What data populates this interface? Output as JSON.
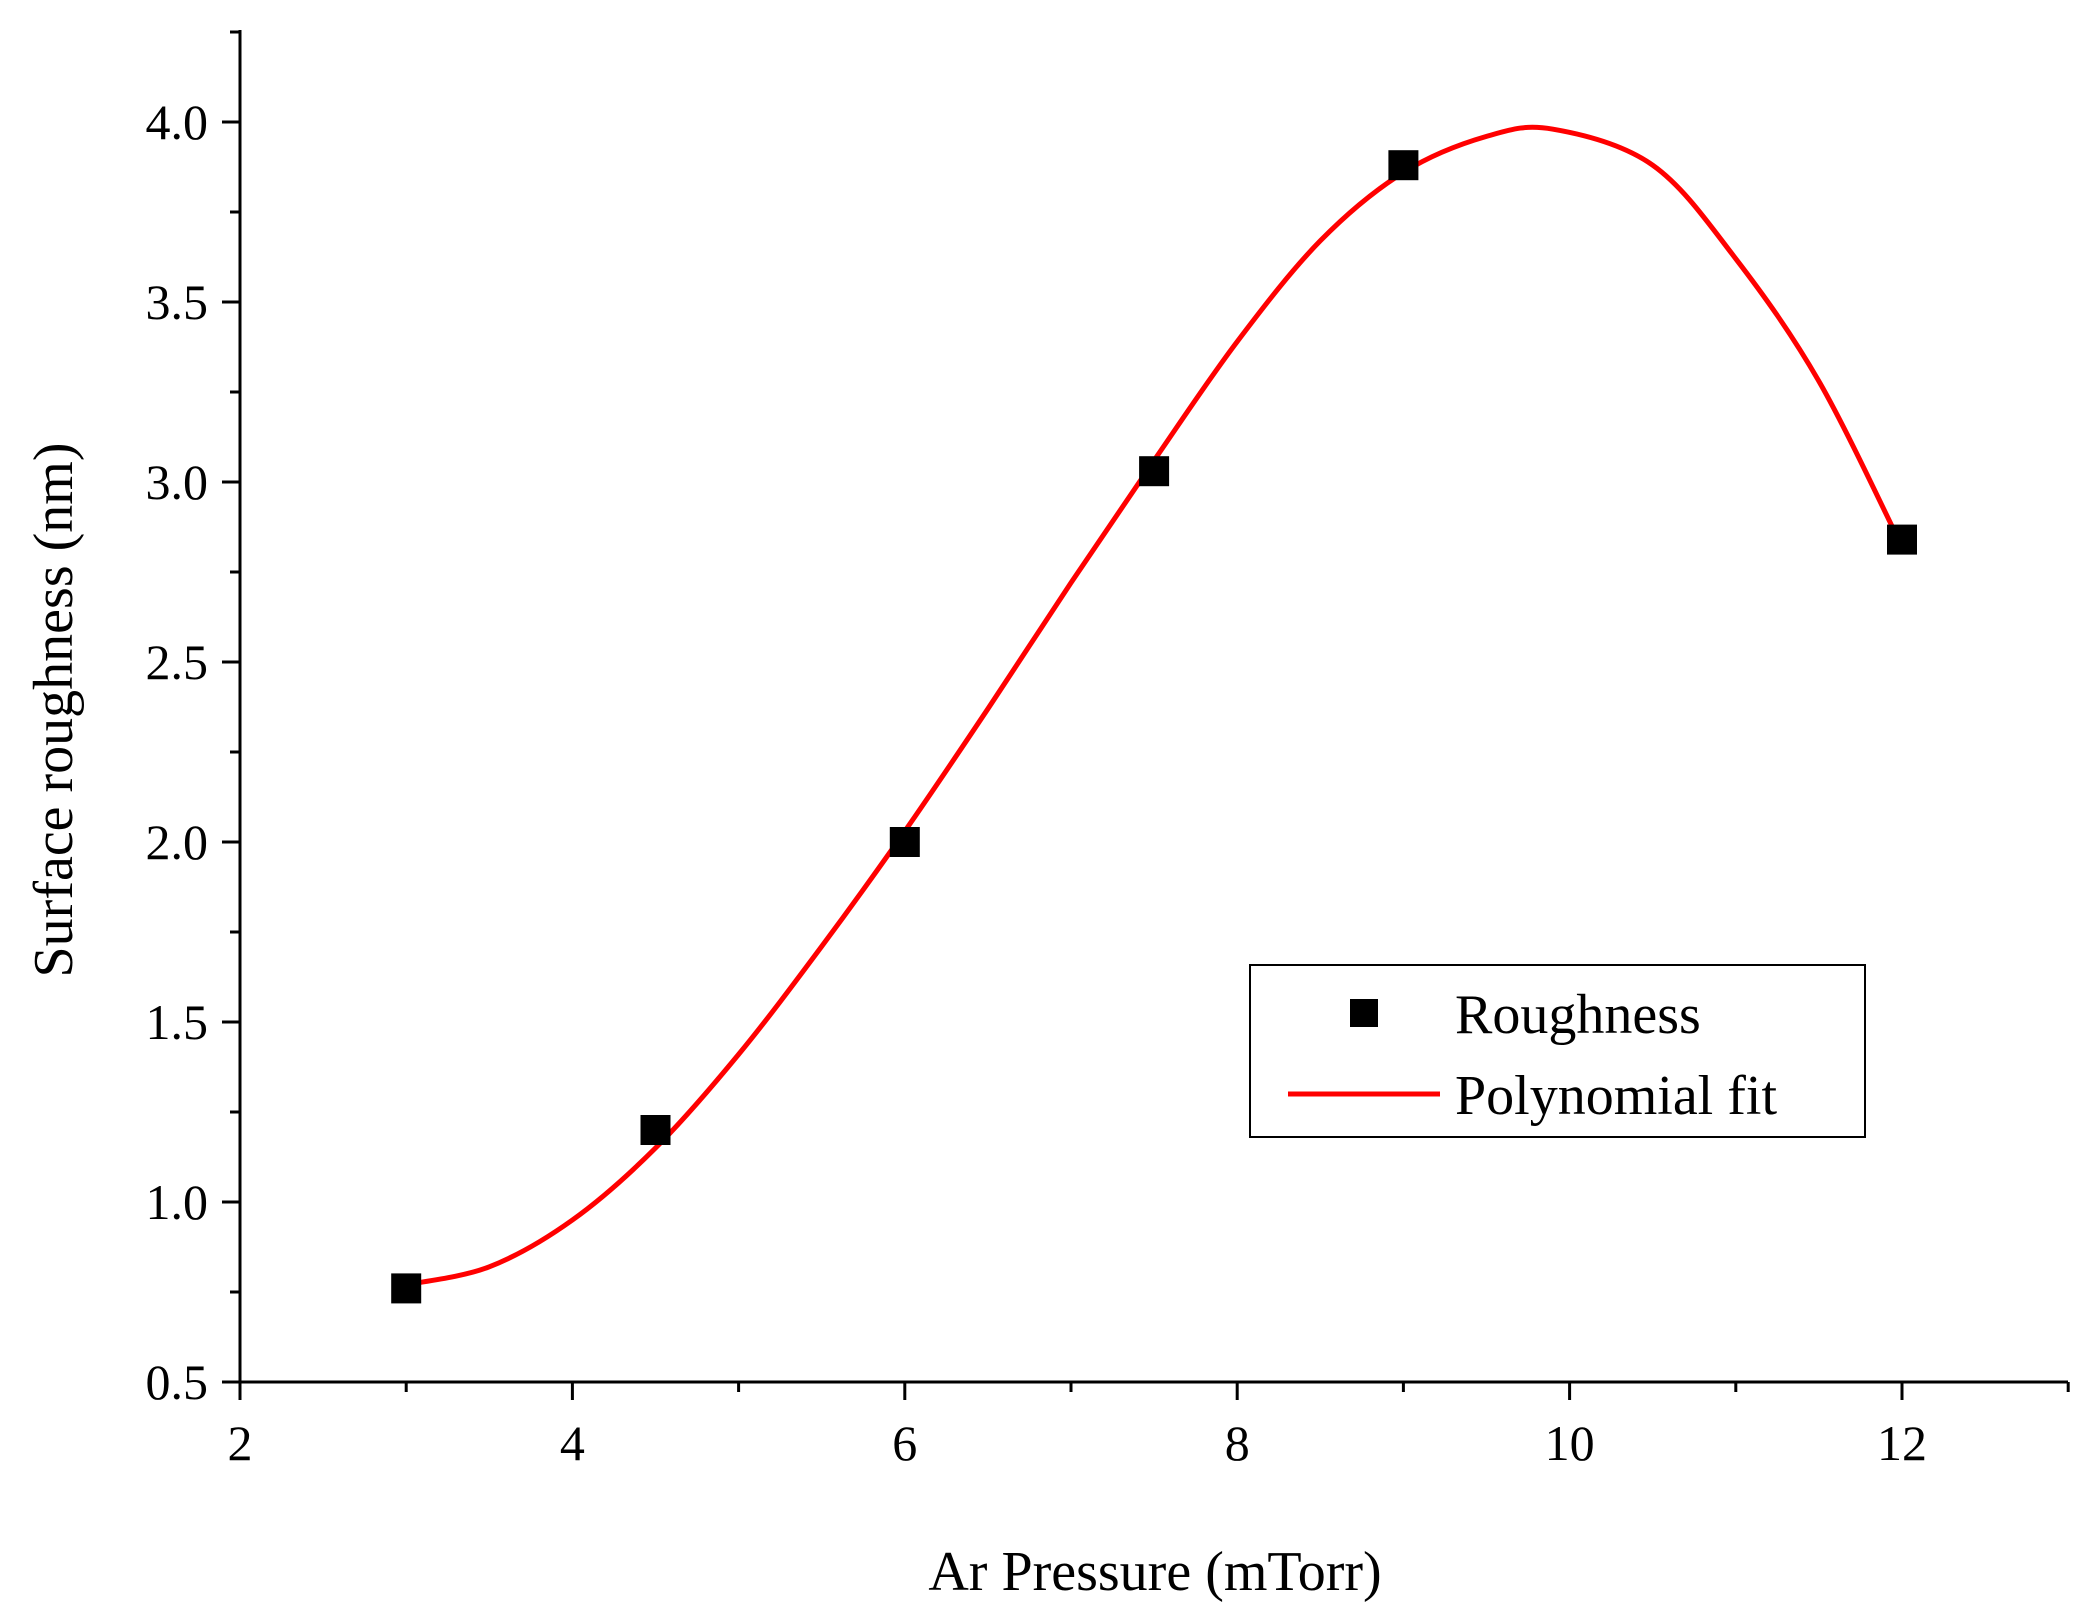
{
  "chart_data": {
    "type": "scatter",
    "title": "",
    "xlabel": "Ar Pressure (mTorr)",
    "ylabel": "Surface roughness (nm)",
    "xlim": [
      2,
      13
    ],
    "ylim": [
      0.5,
      4.25
    ],
    "x_ticks": [
      "2",
      "4",
      "6",
      "8",
      "10",
      "12"
    ],
    "y_ticks": [
      "0.5",
      "1.0",
      "1.5",
      "2.0",
      "2.5",
      "3.0",
      "3.5",
      "4.0"
    ],
    "grid": false,
    "legend_position": "right-center",
    "series": [
      {
        "name": "Roughness",
        "type": "scatter",
        "marker": "square",
        "color": "#000000",
        "x": [
          3,
          4.5,
          6,
          7.5,
          9,
          12
        ],
        "y": [
          0.76,
          1.2,
          2.0,
          3.03,
          3.88,
          2.84
        ]
      },
      {
        "name": "Polynomial fit",
        "type": "line",
        "color": "#ff0000",
        "x": [
          3,
          3.5,
          4,
          4.5,
          5,
          5.5,
          6,
          6.5,
          7,
          7.5,
          8,
          8.5,
          9,
          9.5,
          9.9,
          10.5,
          11,
          11.5,
          12
        ],
        "y": [
          0.77,
          0.82,
          0.95,
          1.15,
          1.41,
          1.71,
          2.03,
          2.37,
          2.72,
          3.06,
          3.39,
          3.67,
          3.86,
          3.96,
          3.98,
          3.88,
          3.62,
          3.28,
          2.82
        ]
      }
    ]
  }
}
